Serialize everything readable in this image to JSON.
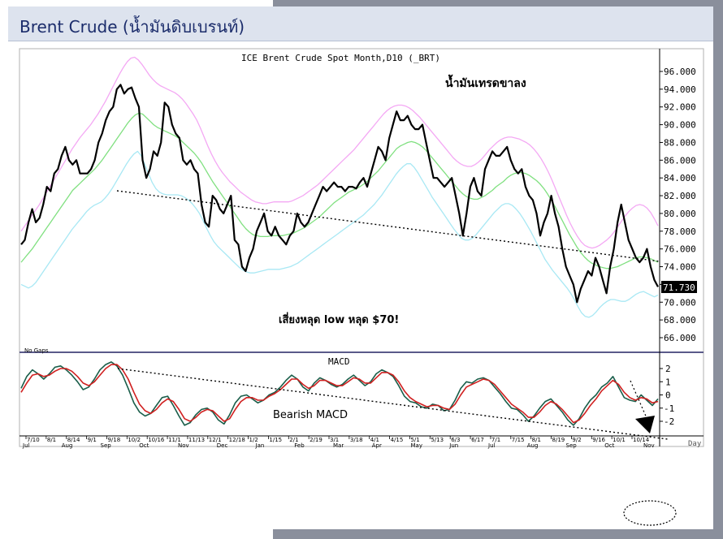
{
  "slide": {
    "title": "Brent Crude (น้ำมันดิบเบรนท์)"
  },
  "chart_data": [
    {
      "type": "line",
      "title": "ICE Brent Crude Spot Month,D10 (_BRT)",
      "yticks": [
        "96.000",
        "94.000",
        "92.000",
        "90.000",
        "88.000",
        "86.000",
        "84.000",
        "82.000",
        "80.000",
        "78.000",
        "76.000",
        "74.000",
        "72.000",
        "70.000",
        "68.000",
        "66.000"
      ],
      "ylim": [
        64.5,
        97.5
      ],
      "last_value_label": "71.730",
      "note_top": "น้ำมันเทรดขาลง",
      "note_bottom": "เสี่ยงหลุด low หลุด $70!",
      "gaps_label": "No Gaps",
      "series": [
        {
          "color": "#000000",
          "values": [
            76.5,
            77,
            79,
            80.5,
            79,
            79.5,
            81,
            83,
            82.5,
            84.5,
            85,
            86.5,
            87.5,
            86,
            85.5,
            86,
            84.5,
            84.5,
            84.5,
            85,
            86,
            88,
            89,
            90.5,
            91.5,
            92,
            94,
            94.5,
            93.5,
            94,
            94.2,
            93,
            92,
            86,
            84,
            85,
            87,
            86.5,
            88,
            92.5,
            92,
            90,
            89,
            88.5,
            86,
            85.5,
            86,
            85,
            84.5,
            81,
            79,
            78.5,
            82,
            81.5,
            80.5,
            80,
            81,
            82,
            77,
            76.5,
            74,
            73.5,
            75,
            76,
            78,
            79,
            80,
            78,
            77.5,
            78.5,
            77.5,
            77,
            76.5,
            77.5,
            78,
            80,
            79,
            78.5,
            79,
            80,
            81,
            82,
            83,
            82.5,
            83,
            83.5,
            83,
            83,
            82.5,
            83,
            83,
            82.8,
            83.5,
            84,
            83,
            84.5,
            86,
            87.5,
            87,
            86,
            88.5,
            90,
            91.5,
            90.5,
            90.5,
            91,
            90,
            89.5,
            89.5,
            90,
            88,
            86,
            84,
            84,
            83.5,
            83,
            83.5,
            84,
            82,
            80,
            77.5,
            80,
            83,
            84,
            82.5,
            82,
            85,
            86,
            87,
            86.5,
            86.5,
            87,
            87.5,
            86,
            85,
            84.5,
            85,
            83,
            82,
            81.5,
            80,
            77.5,
            79,
            80,
            82,
            80,
            78.5,
            76,
            74,
            73,
            72,
            70,
            71.5,
            72.5,
            73.5,
            73,
            75,
            74,
            72.5,
            71,
            74,
            76,
            79,
            81,
            79,
            77,
            76,
            75,
            74.5,
            75,
            76,
            74,
            72.5,
            71.73
          ]
        },
        {
          "color": "#80e080",
          "values": [
            74.5,
            75,
            75.5,
            76,
            76.6,
            77.2,
            77.8,
            78.4,
            79,
            79.6,
            80.2,
            80.8,
            81.4,
            82,
            82.6,
            83,
            83.4,
            83.8,
            84.2,
            84.6,
            85,
            85.5,
            86,
            86.6,
            87.2,
            87.8,
            88.4,
            89,
            89.6,
            90.2,
            90.7,
            91.1,
            91.3,
            91.2,
            90.8,
            90.4,
            90,
            89.7,
            89.5,
            89.3,
            89.1,
            88.9,
            88.7,
            88.4,
            88,
            87.6,
            87.2,
            86.8,
            86.3,
            85.7,
            85,
            84.3,
            83.6,
            83,
            82.4,
            81.8,
            81.2,
            80.6,
            80,
            79.4,
            78.8,
            78.3,
            77.9,
            77.6,
            77.5,
            77.4,
            77.4,
            77.4,
            77.5,
            77.5,
            77.5,
            77.5,
            77.6,
            77.7,
            77.8,
            78,
            78.2,
            78.4,
            78.7,
            79,
            79.3,
            79.6,
            80,
            80.4,
            80.8,
            81.2,
            81.5,
            81.8,
            82.1,
            82.4,
            82.6,
            82.8,
            83,
            83.3,
            83.6,
            84,
            84.4,
            84.8,
            85.3,
            85.8,
            86.3,
            86.8,
            87.3,
            87.6,
            87.8,
            88,
            88.1,
            88,
            87.8,
            87.5,
            87.1,
            86.6,
            86.1,
            85.6,
            85.1,
            84.6,
            84.1,
            83.6,
            83.1,
            82.6,
            82.2,
            81.9,
            81.7,
            81.6,
            81.6,
            81.8,
            82,
            82.3,
            82.6,
            83,
            83.3,
            83.6,
            84,
            84.3,
            84.5,
            84.6,
            84.6,
            84.5,
            84.3,
            84,
            83.7,
            83.3,
            82.8,
            82.2,
            81.5,
            80.8,
            80,
            79.2,
            78.4,
            77.6,
            76.9,
            76.2,
            75.6,
            75.1,
            74.7,
            74.4,
            74.2,
            74,
            73.9,
            73.8,
            73.8,
            73.9,
            74,
            74.2,
            74.4,
            74.6,
            74.8,
            75,
            75.1,
            75.1,
            75,
            74.9,
            74.7,
            74.5
          ]
        },
        {
          "color": "#f4a8f4",
          "values": [
            78,
            78.6,
            79.2,
            79.8,
            80.4,
            81,
            81.7,
            82.4,
            83.1,
            83.8,
            84.5,
            85.2,
            85.9,
            86.6,
            87.3,
            87.9,
            88.5,
            89,
            89.5,
            90,
            90.6,
            91.2,
            91.9,
            92.6,
            93.4,
            94.2,
            95,
            95.8,
            96.5,
            97.1,
            97.5,
            97.6,
            97.3,
            96.8,
            96.2,
            95.6,
            95.1,
            94.7,
            94.4,
            94.2,
            94,
            93.8,
            93.6,
            93.3,
            92.9,
            92.4,
            91.8,
            91.2,
            90.5,
            89.6,
            88.6,
            87.6,
            86.7,
            85.9,
            85.2,
            84.6,
            84.1,
            83.6,
            83.2,
            82.8,
            82.4,
            82.1,
            81.8,
            81.5,
            81.3,
            81.2,
            81.1,
            81.1,
            81.2,
            81.3,
            81.3,
            81.3,
            81.3,
            81.3,
            81.4,
            81.6,
            81.8,
            82,
            82.3,
            82.6,
            82.9,
            83.2,
            83.6,
            84,
            84.4,
            84.8,
            85.2,
            85.6,
            86,
            86.4,
            86.8,
            87.2,
            87.7,
            88.2,
            88.7,
            89.2,
            89.7,
            90.2,
            90.7,
            91.2,
            91.6,
            91.9,
            92.1,
            92.2,
            92.2,
            92.1,
            91.9,
            91.6,
            91.2,
            90.8,
            90.3,
            89.8,
            89.3,
            88.8,
            88.3,
            87.8,
            87.3,
            86.8,
            86.3,
            85.9,
            85.6,
            85.4,
            85.3,
            85.3,
            85.5,
            85.8,
            86.2,
            86.7,
            87.2,
            87.6,
            88,
            88.3,
            88.5,
            88.6,
            88.6,
            88.5,
            88.4,
            88.2,
            88,
            87.7,
            87.3,
            86.8,
            86.2,
            85.5,
            84.7,
            83.8,
            82.8,
            81.8,
            80.8,
            79.8,
            78.9,
            78.1,
            77.4,
            76.8,
            76.4,
            76.2,
            76.1,
            76.2,
            76.4,
            76.7,
            77,
            77.4,
            77.9,
            78.5,
            79.1,
            79.7,
            80.2,
            80.6,
            80.9,
            81,
            80.9,
            80.6,
            80.1,
            79.4,
            78.6
          ]
        },
        {
          "color": "#a8e8f4",
          "values": [
            72,
            71.8,
            71.6,
            71.8,
            72.2,
            72.8,
            73.4,
            74,
            74.6,
            75.2,
            75.8,
            76.4,
            77,
            77.6,
            78.2,
            78.7,
            79.2,
            79.7,
            80.2,
            80.6,
            80.9,
            81.1,
            81.3,
            81.7,
            82.2,
            82.8,
            83.5,
            84.2,
            84.9,
            85.6,
            86.2,
            86.7,
            87,
            86.5,
            85.5,
            84.5,
            83.5,
            82.8,
            82.4,
            82.2,
            82.1,
            82.1,
            82.1,
            82.1,
            82,
            81.8,
            81.5,
            81.1,
            80.6,
            80,
            79.2,
            78.3,
            77.5,
            76.8,
            76.3,
            75.9,
            75.5,
            75.1,
            74.7,
            74.3,
            73.9,
            73.6,
            73.4,
            73.3,
            73.3,
            73.4,
            73.5,
            73.6,
            73.7,
            73.7,
            73.7,
            73.7,
            73.8,
            73.9,
            74,
            74.2,
            74.4,
            74.7,
            75,
            75.3,
            75.6,
            75.9,
            76.2,
            76.5,
            76.8,
            77.1,
            77.4,
            77.7,
            78,
            78.3,
            78.6,
            78.9,
            79.2,
            79.5,
            79.8,
            80.2,
            80.6,
            81,
            81.5,
            82,
            82.6,
            83.2,
            83.8,
            84.4,
            84.9,
            85.3,
            85.6,
            85.6,
            85.2,
            84.6,
            83.9,
            83.2,
            82.5,
            81.8,
            81.2,
            80.6,
            80,
            79.4,
            78.8,
            78.2,
            77.7,
            77.2,
            77,
            77,
            77.2,
            77.6,
            78.1,
            78.6,
            79.1,
            79.6,
            80.1,
            80.5,
            80.9,
            81.1,
            81.1,
            80.9,
            80.5,
            80,
            79.4,
            78.7,
            78,
            77.2,
            76.4,
            75.6,
            74.8,
            74.2,
            73.6,
            73.1,
            72.6,
            72.1,
            71.6,
            71,
            70.3,
            69.5,
            68.8,
            68.4,
            68.3,
            68.5,
            68.9,
            69.4,
            69.8,
            70.1,
            70.3,
            70.3,
            70.2,
            70.1,
            70.1,
            70.3,
            70.6,
            70.9,
            71.1,
            71.2,
            71,
            70.8,
            70.6,
            70.8
          ]
        }
      ]
    },
    {
      "type": "line",
      "title": "MACD",
      "yticks": [
        "2",
        "1",
        "0",
        "-1",
        "-2"
      ],
      "ylim": [
        -3.4,
        2.9
      ],
      "note": "Bearish MACD",
      "x_axis_unit": "Day",
      "x_ticks_top": [
        "7/10",
        "8/1",
        "8/14",
        "9/1",
        "9/18",
        "10/2",
        "10/16",
        "11/1",
        "11/13",
        "12/1",
        "12/18",
        "1/2",
        "1/15",
        "2/1",
        "2/19",
        "3/1",
        "3/18",
        "4/1",
        "4/15",
        "5/1",
        "5/13",
        "6/3",
        "6/17",
        "7/1",
        "7/15",
        "8/1",
        "8/19",
        "9/2",
        "9/16",
        "10/1",
        "10/14"
      ],
      "x_ticks_bottom": [
        "Jul",
        "Aug",
        "Sep",
        "Oct",
        "Nov",
        "Dec",
        "Jan",
        "Feb",
        "Mar",
        "Apr",
        "May",
        "Jun",
        "Jul",
        "Aug",
        "Sep",
        "Oct",
        "Nov"
      ],
      "series": [
        {
          "color": "#1a5e4a",
          "values": [
            0.5,
            1.4,
            1.9,
            1.6,
            1.2,
            1.6,
            2.1,
            2.2,
            1.9,
            1.5,
            1,
            0.4,
            0.6,
            1.2,
            1.9,
            2.3,
            2.5,
            2.2,
            1.5,
            0.5,
            -0.6,
            -1.3,
            -1.6,
            -1.4,
            -0.8,
            -0.2,
            -0.1,
            -0.8,
            -1.6,
            -2.3,
            -2.1,
            -1.5,
            -1.1,
            -1,
            -1.3,
            -1.9,
            -2.2,
            -1.5,
            -0.6,
            -0.1,
            0,
            -0.3,
            -0.6,
            -0.4,
            0,
            0.2,
            0.6,
            1.1,
            1.5,
            1.2,
            0.6,
            0.3,
            0.9,
            1.3,
            1.1,
            0.8,
            0.6,
            0.8,
            1.2,
            1.5,
            1.1,
            0.7,
            1,
            1.6,
            1.9,
            1.7,
            1.4,
            0.7,
            -0.1,
            -0.5,
            -0.6,
            -0.9,
            -1,
            -0.7,
            -0.8,
            -1.2,
            -1.1,
            -0.4,
            0.5,
            1,
            0.9,
            1.2,
            1.3,
            1.1,
            0.6,
            0.1,
            -0.5,
            -1,
            -1.1,
            -1.5,
            -2,
            -1.6,
            -1,
            -0.5,
            -0.3,
            -0.8,
            -1.3,
            -1.9,
            -2.3,
            -1.8,
            -1,
            -0.4,
            0,
            0.6,
            0.9,
            1.4,
            0.6,
            -0.2,
            -0.4,
            -0.5,
            0,
            -0.4,
            -0.8,
            -0.3
          ]
        },
        {
          "color": "#d02020",
          "values": [
            0.2,
            0.9,
            1.5,
            1.6,
            1.4,
            1.5,
            1.8,
            2,
            2,
            1.8,
            1.4,
            0.9,
            0.7,
            1,
            1.5,
            2,
            2.3,
            2.3,
            1.9,
            1.2,
            0.2,
            -0.7,
            -1.2,
            -1.4,
            -1.1,
            -0.6,
            -0.3,
            -0.5,
            -1.1,
            -1.8,
            -2,
            -1.7,
            -1.3,
            -1.1,
            -1.2,
            -1.6,
            -2,
            -1.8,
            -1.1,
            -0.5,
            -0.2,
            -0.2,
            -0.4,
            -0.4,
            -0.1,
            0.1,
            0.4,
            0.8,
            1.2,
            1.2,
            0.8,
            0.5,
            0.7,
            1.1,
            1.1,
            0.9,
            0.7,
            0.7,
            1,
            1.3,
            1.2,
            0.9,
            0.9,
            1.3,
            1.7,
            1.7,
            1.5,
            1,
            0.3,
            -0.2,
            -0.5,
            -0.7,
            -0.9,
            -0.8,
            -0.8,
            -1,
            -1.1,
            -0.7,
            0,
            0.6,
            0.8,
            1,
            1.2,
            1.1,
            0.8,
            0.3,
            -0.2,
            -0.7,
            -1,
            -1.3,
            -1.7,
            -1.7,
            -1.3,
            -0.8,
            -0.5,
            -0.7,
            -1.1,
            -1.6,
            -2.1,
            -1.9,
            -1.4,
            -0.8,
            -0.3,
            0.3,
            0.7,
            1.1,
            0.8,
            0.2,
            -0.2,
            -0.4,
            -0.2,
            -0.3,
            -0.6,
            -0.5
          ]
        }
      ]
    }
  ]
}
